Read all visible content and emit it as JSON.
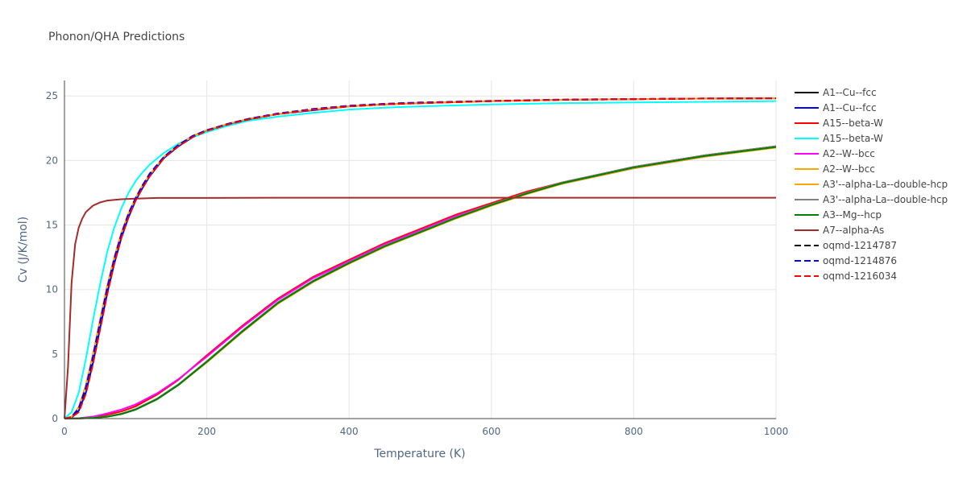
{
  "chart_data": {
    "type": "line",
    "title": "Phonon/QHA Predictions",
    "xlabel": "Temperature (K)",
    "ylabel": "Cv (J/K/mol)",
    "xlim": [
      0,
      1000
    ],
    "ylim": [
      0,
      26.2
    ],
    "xticks": [
      0,
      200,
      400,
      600,
      800,
      1000
    ],
    "yticks": [
      0,
      5,
      10,
      15,
      20,
      25
    ],
    "grid": true,
    "legend": "right",
    "series": [
      {
        "name": "A1--Cu--fcc",
        "color": "#000000",
        "dash": false,
        "x": [
          0,
          20,
          40,
          60,
          80,
          100,
          130,
          160,
          200,
          250,
          300,
          350,
          400,
          450,
          500,
          550,
          600,
          650,
          700,
          800,
          900,
          1000
        ],
        "y": [
          0,
          0.01,
          0.05,
          0.15,
          0.35,
          0.7,
          1.5,
          2.6,
          4.4,
          6.8,
          9.0,
          10.7,
          12.1,
          13.4,
          14.5,
          15.6,
          16.6,
          17.5,
          18.3,
          19.5,
          20.4,
          21.1
        ]
      },
      {
        "name": "A1--Cu--fcc",
        "color": "#0000ff",
        "dash": false,
        "x": [
          0,
          10,
          20,
          30,
          40,
          50,
          60,
          70,
          80,
          90,
          100,
          110,
          120,
          140,
          160,
          180,
          200,
          230,
          260,
          300,
          350,
          400,
          450,
          500,
          600,
          700,
          800,
          900,
          1000
        ],
        "y": [
          0,
          0.08,
          0.6,
          2.0,
          4.3,
          7.0,
          9.7,
          12.0,
          14.0,
          15.6,
          16.9,
          17.9,
          18.8,
          20.2,
          21.1,
          21.8,
          22.3,
          22.8,
          23.2,
          23.6,
          23.9,
          24.2,
          24.35,
          24.45,
          24.6,
          24.7,
          24.75,
          24.8,
          24.82
        ]
      },
      {
        "name": "A15--beta-W",
        "color": "#ff0000",
        "dash": false,
        "x": [
          0,
          20,
          40,
          60,
          80,
          100,
          130,
          160,
          200,
          250,
          300,
          350,
          400,
          450,
          500,
          550,
          600,
          650,
          700,
          800,
          900,
          1000
        ],
        "y": [
          0,
          0.02,
          0.1,
          0.3,
          0.55,
          0.95,
          1.85,
          3.0,
          4.9,
          7.2,
          9.3,
          11.0,
          12.3,
          13.6,
          14.7,
          15.8,
          16.7,
          17.6,
          18.3,
          19.5,
          20.4,
          21.1
        ]
      },
      {
        "name": "A15--beta-W",
        "color": "#00ffff",
        "dash": false,
        "x": [
          0,
          10,
          20,
          30,
          40,
          50,
          60,
          70,
          80,
          90,
          100,
          110,
          120,
          140,
          160,
          180,
          200,
          230,
          260,
          300,
          350,
          400,
          450,
          500,
          600,
          700,
          800,
          900,
          1000
        ],
        "y": [
          0,
          0.5,
          2.0,
          4.6,
          7.6,
          10.4,
          12.9,
          14.8,
          16.3,
          17.5,
          18.4,
          19.1,
          19.7,
          20.6,
          21.3,
          21.8,
          22.2,
          22.7,
          23.1,
          23.4,
          23.7,
          23.95,
          24.1,
          24.2,
          24.35,
          24.45,
          24.5,
          24.55,
          24.6
        ]
      },
      {
        "name": "A2--W--bcc",
        "color": "#ff00ff",
        "dash": false,
        "x": [
          0,
          20,
          40,
          60,
          80,
          100,
          130,
          160,
          200,
          250,
          300,
          350,
          400,
          450,
          500,
          550,
          600,
          650,
          700,
          800,
          900,
          1000
        ],
        "y": [
          0,
          0.03,
          0.15,
          0.4,
          0.7,
          1.1,
          1.95,
          3.05,
          4.8,
          7.1,
          9.2,
          10.9,
          12.2,
          13.5,
          14.6,
          15.7,
          16.6,
          17.5,
          18.2,
          19.4,
          20.3,
          21.05
        ]
      },
      {
        "name": "A2--W--bcc",
        "color": "#ffa500",
        "dash": false,
        "x": [
          0,
          10,
          20,
          30,
          40,
          50,
          60,
          70,
          80,
          90,
          100,
          110,
          120,
          140,
          160,
          180,
          200,
          230,
          260,
          300,
          350,
          400,
          450,
          500,
          600,
          700,
          800,
          900,
          1000
        ],
        "y": [
          0,
          0.15,
          0.9,
          2.6,
          5.0,
          7.7,
          10.3,
          12.5,
          14.4,
          15.9,
          17.1,
          18.1,
          18.9,
          20.3,
          21.2,
          21.9,
          22.35,
          22.85,
          23.25,
          23.6,
          23.95,
          24.2,
          24.35,
          24.45,
          24.6,
          24.7,
          24.75,
          24.8,
          24.82
        ]
      },
      {
        "name": "A3'--alpha-La--double-hcp",
        "color": "#ffa500",
        "dash": false,
        "x": [
          0,
          20,
          40,
          60,
          80,
          100,
          130,
          160,
          200,
          250,
          300,
          350,
          400,
          450,
          500,
          550,
          600,
          650,
          700,
          800,
          900,
          1000
        ],
        "y": [
          0,
          0.01,
          0.06,
          0.16,
          0.37,
          0.72,
          1.5,
          2.6,
          4.35,
          6.7,
          8.9,
          10.6,
          12.0,
          13.3,
          14.4,
          15.5,
          16.5,
          17.4,
          18.2,
          19.4,
          20.3,
          21.0
        ]
      },
      {
        "name": "A3'--alpha-La--double-hcp",
        "color": "#808080",
        "dash": false,
        "x": [
          0,
          20,
          40,
          60,
          80,
          100,
          130,
          160,
          200,
          250,
          300,
          350,
          400,
          450,
          500,
          550,
          600,
          650,
          700,
          800,
          900,
          1000
        ],
        "y": [
          0,
          0.01,
          0.06,
          0.17,
          0.38,
          0.74,
          1.55,
          2.65,
          4.45,
          6.8,
          9.0,
          10.7,
          12.1,
          13.4,
          14.5,
          15.6,
          16.6,
          17.5,
          18.3,
          19.5,
          20.4,
          21.1
        ]
      },
      {
        "name": "A3--Mg--hcp",
        "color": "#008000",
        "dash": false,
        "x": [
          0,
          20,
          40,
          60,
          80,
          100,
          130,
          160,
          200,
          250,
          300,
          350,
          400,
          450,
          500,
          550,
          600,
          650,
          700,
          800,
          900,
          1000
        ],
        "y": [
          0,
          0.01,
          0.05,
          0.15,
          0.36,
          0.7,
          1.5,
          2.6,
          4.4,
          6.75,
          8.95,
          10.65,
          12.05,
          13.35,
          14.45,
          15.55,
          16.55,
          17.45,
          18.25,
          19.45,
          20.35,
          21.05
        ]
      },
      {
        "name": "A7--alpha-As",
        "color": "#a52a2a",
        "dash": false,
        "x": [
          0,
          5,
          10,
          15,
          20,
          25,
          30,
          40,
          50,
          60,
          80,
          100,
          130,
          160,
          200,
          300,
          400,
          500,
          600,
          700,
          800,
          900,
          1000
        ],
        "y": [
          0,
          4.0,
          10.5,
          13.5,
          14.8,
          15.5,
          16.0,
          16.5,
          16.75,
          16.9,
          17.0,
          17.05,
          17.1,
          17.1,
          17.1,
          17.12,
          17.12,
          17.12,
          17.12,
          17.12,
          17.12,
          17.12,
          17.12
        ]
      },
      {
        "name": "oqmd-1214787",
        "color": "#000000",
        "dash": true,
        "x": [
          0,
          10,
          20,
          30,
          40,
          50,
          60,
          70,
          80,
          90,
          100,
          110,
          120,
          140,
          160,
          180,
          200,
          230,
          260,
          300,
          350,
          400,
          450,
          500,
          600,
          700,
          800,
          900,
          1000
        ],
        "y": [
          0,
          0.1,
          0.7,
          2.2,
          4.5,
          7.2,
          9.9,
          12.2,
          14.2,
          15.8,
          17.0,
          18.0,
          18.9,
          20.25,
          21.15,
          21.85,
          22.3,
          22.8,
          23.2,
          23.6,
          23.95,
          24.2,
          24.35,
          24.45,
          24.6,
          24.7,
          24.75,
          24.8,
          24.82
        ]
      },
      {
        "name": "oqmd-1214876",
        "color": "#0000ff",
        "dash": true,
        "x": [
          0,
          10,
          20,
          30,
          40,
          50,
          60,
          70,
          80,
          90,
          100,
          110,
          120,
          140,
          160,
          180,
          200,
          230,
          260,
          300,
          350,
          400,
          450,
          500,
          600,
          700,
          800,
          900,
          1000
        ],
        "y": [
          0,
          0.12,
          0.8,
          2.4,
          4.8,
          7.5,
          10.1,
          12.4,
          14.3,
          15.9,
          17.1,
          18.1,
          19.0,
          20.3,
          21.2,
          21.9,
          22.35,
          22.85,
          23.25,
          23.65,
          24.0,
          24.25,
          24.4,
          24.5,
          24.62,
          24.72,
          24.77,
          24.8,
          24.83
        ]
      },
      {
        "name": "oqmd-1216034",
        "color": "#ff0000",
        "dash": true,
        "x": [
          0,
          10,
          20,
          30,
          40,
          50,
          60,
          70,
          80,
          90,
          100,
          110,
          120,
          140,
          160,
          180,
          200,
          230,
          260,
          300,
          350,
          400,
          450,
          500,
          600,
          700,
          800,
          900,
          1000
        ],
        "y": [
          0,
          0.1,
          0.5,
          1.9,
          4.2,
          6.9,
          9.6,
          12.0,
          14.0,
          15.6,
          16.9,
          17.9,
          18.8,
          20.2,
          21.1,
          21.8,
          22.3,
          22.8,
          23.2,
          23.6,
          23.95,
          24.2,
          24.35,
          24.45,
          24.6,
          24.7,
          24.75,
          24.8,
          24.82
        ]
      }
    ]
  }
}
